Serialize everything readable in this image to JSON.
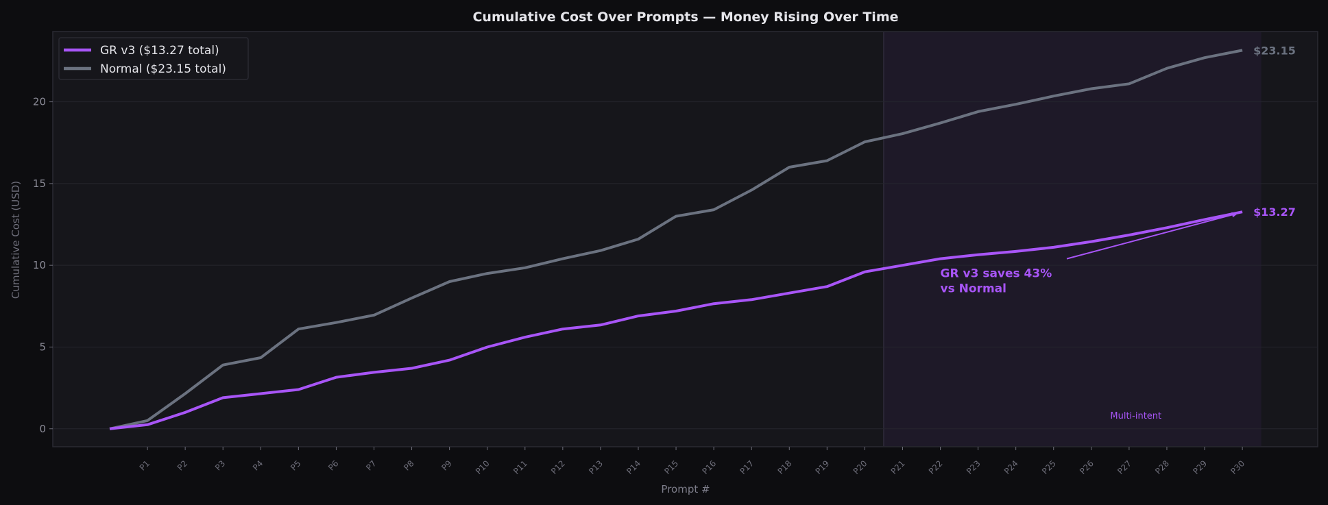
{
  "chart_data": {
    "type": "line",
    "title": "Cumulative Cost Over Prompts — Money Rising Over Time",
    "xlabel": "Prompt #",
    "ylabel": "Cumulative Cost (USD)",
    "categories": [
      "",
      "P1",
      "P2",
      "P3",
      "P4",
      "P5",
      "P6",
      "P7",
      "P8",
      "P9",
      "P10",
      "P11",
      "P12",
      "P13",
      "P14",
      "P15",
      "P16",
      "P17",
      "P18",
      "P19",
      "P20",
      "P21",
      "P22",
      "P23",
      "P24",
      "P25",
      "P26",
      "P27",
      "P28",
      "P29",
      "P30"
    ],
    "yticks": [
      0,
      5,
      10,
      15,
      20
    ],
    "ylim": [
      -1.1,
      24.3
    ],
    "grid": true,
    "legend": "top-left",
    "series": [
      {
        "name": "GR v3  ($13.27 total)",
        "color": "#a855f7",
        "values": [
          0,
          0.25,
          1.0,
          1.9,
          2.15,
          2.4,
          3.15,
          3.45,
          3.7,
          4.2,
          5.0,
          5.6,
          6.1,
          6.35,
          6.9,
          7.2,
          7.65,
          7.9,
          8.3,
          8.7,
          9.6,
          10.0,
          10.4,
          10.65,
          10.85,
          11.1,
          11.45,
          11.85,
          12.3,
          12.8,
          13.27
        ],
        "end_label": "$13.27"
      },
      {
        "name": "Normal  ($23.15 total)",
        "color": "#6b7280",
        "values": [
          0,
          0.5,
          2.15,
          3.9,
          4.35,
          6.1,
          6.5,
          6.95,
          8.0,
          9.0,
          9.5,
          9.85,
          10.4,
          10.9,
          11.6,
          13.0,
          13.4,
          14.6,
          16.0,
          16.4,
          17.55,
          18.05,
          18.7,
          19.4,
          19.85,
          20.35,
          20.8,
          21.1,
          22.05,
          22.7,
          23.15
        ],
        "end_label": "$23.15"
      }
    ],
    "shaded_region": {
      "from": "P20",
      "to": "P30",
      "label": "Multi-intent",
      "color": "#a855f7"
    },
    "annotation": {
      "lines": [
        "GR v3 saves 43%",
        "vs Normal"
      ],
      "points_to": "P30",
      "color": "#a855f7"
    }
  }
}
